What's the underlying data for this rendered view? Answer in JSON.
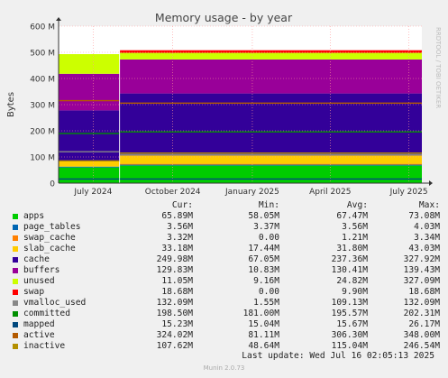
{
  "chart_data": {
    "type": "area",
    "title": "Memory usage - by year",
    "ylabel": "Bytes",
    "side_label": "RRDTOOL / TOBI OETIKER",
    "ylim": [
      0,
      600
    ],
    "yunit": "M",
    "yticks": [
      "0",
      "100 M",
      "200 M",
      "300 M",
      "400 M",
      "500 M",
      "600 M"
    ],
    "xticks": [
      {
        "label": "July 2024",
        "date": "2024-07-01"
      },
      {
        "label": "October 2024",
        "date": "2024-10-01"
      },
      {
        "label": "January 2025",
        "date": "2025-01-01"
      },
      {
        "label": "April 2025",
        "date": "2025-04-01"
      },
      {
        "label": "July 2025",
        "date": "2025-07-01"
      }
    ],
    "x_range": [
      "2024-05-22",
      "2025-07-16"
    ],
    "stacked_series": [
      {
        "name": "apps",
        "color": "#00cc00"
      },
      {
        "name": "page_tables",
        "color": "#0066b3"
      },
      {
        "name": "swap_cache",
        "color": "#ff8000"
      },
      {
        "name": "slab_cache",
        "color": "#ffcc00"
      },
      {
        "name": "cache",
        "color": "#330099"
      },
      {
        "name": "buffers",
        "color": "#990099"
      },
      {
        "name": "unused",
        "color": "#ccff00"
      },
      {
        "name": "swap",
        "color": "#ff0000"
      }
    ],
    "line_series": [
      {
        "name": "vmalloc_used",
        "color": "#888888"
      },
      {
        "name": "committed",
        "color": "#008f00"
      },
      {
        "name": "mapped",
        "color": "#00487d"
      },
      {
        "name": "active",
        "color": "#b35a00"
      },
      {
        "name": "inactive",
        "color": "#b38f00"
      }
    ],
    "segments": [
      {
        "from": "2024-05-22",
        "to": "2024-07-31",
        "apps": 60,
        "page_tables": 3,
        "swap_cache": 0,
        "slab_cache": 20,
        "cache": 195,
        "buffers": 140,
        "unused": 75,
        "swap": 0,
        "committed": 190,
        "mapped": 16,
        "active": 315,
        "inactive": 85,
        "vmalloc_used": 120
      },
      {
        "from": "2024-08-01",
        "to": "2025-07-16",
        "apps": 67,
        "page_tables": 3.6,
        "swap_cache": 3.3,
        "slab_cache": 32,
        "cache": 237,
        "buffers": 130,
        "unused": 25,
        "swap": 10,
        "committed": 196,
        "mapped": 15.7,
        "active": 306,
        "inactive": 115,
        "vmalloc_used": 109
      }
    ],
    "legend_headers": [
      "Cur:",
      "Min:",
      "Avg:",
      "Max:"
    ],
    "legend": [
      {
        "name": "apps",
        "color": "#00cc00",
        "cur": "65.89M",
        "min": "58.05M",
        "avg": "67.47M",
        "max": "73.08M"
      },
      {
        "name": "page_tables",
        "color": "#0066b3",
        "cur": "3.56M",
        "min": "3.37M",
        "avg": "3.56M",
        "max": "4.03M"
      },
      {
        "name": "swap_cache",
        "color": "#ff8000",
        "cur": "3.32M",
        "min": "0.00",
        "avg": "1.21M",
        "max": "3.34M"
      },
      {
        "name": "slab_cache",
        "color": "#ffcc00",
        "cur": "33.18M",
        "min": "17.44M",
        "avg": "31.80M",
        "max": "43.03M"
      },
      {
        "name": "cache",
        "color": "#330099",
        "cur": "249.98M",
        "min": "67.05M",
        "avg": "237.36M",
        "max": "327.92M"
      },
      {
        "name": "buffers",
        "color": "#990099",
        "cur": "129.83M",
        "min": "10.83M",
        "avg": "130.41M",
        "max": "139.43M"
      },
      {
        "name": "unused",
        "color": "#ccff00",
        "cur": "11.05M",
        "min": "9.16M",
        "avg": "24.82M",
        "max": "327.09M"
      },
      {
        "name": "swap",
        "color": "#ff0000",
        "cur": "18.68M",
        "min": "0.00",
        "avg": "9.90M",
        "max": "18.68M"
      },
      {
        "name": "vmalloc_used",
        "color": "#888888",
        "cur": "132.09M",
        "min": "1.55M",
        "avg": "109.13M",
        "max": "132.09M"
      },
      {
        "name": "committed",
        "color": "#008f00",
        "cur": "198.50M",
        "min": "181.00M",
        "avg": "195.57M",
        "max": "202.31M"
      },
      {
        "name": "mapped",
        "color": "#00487d",
        "cur": "15.23M",
        "min": "15.04M",
        "avg": "15.67M",
        "max": "26.17M"
      },
      {
        "name": "active",
        "color": "#b35a00",
        "cur": "324.02M",
        "min": "81.11M",
        "avg": "306.30M",
        "max": "348.00M"
      },
      {
        "name": "inactive",
        "color": "#b38f00",
        "cur": "107.62M",
        "min": "48.64M",
        "avg": "115.04M",
        "max": "246.54M"
      }
    ],
    "last_update": "Last update: Wed Jul 16 02:05:13 2025",
    "footer": "Munin 2.0.73"
  }
}
